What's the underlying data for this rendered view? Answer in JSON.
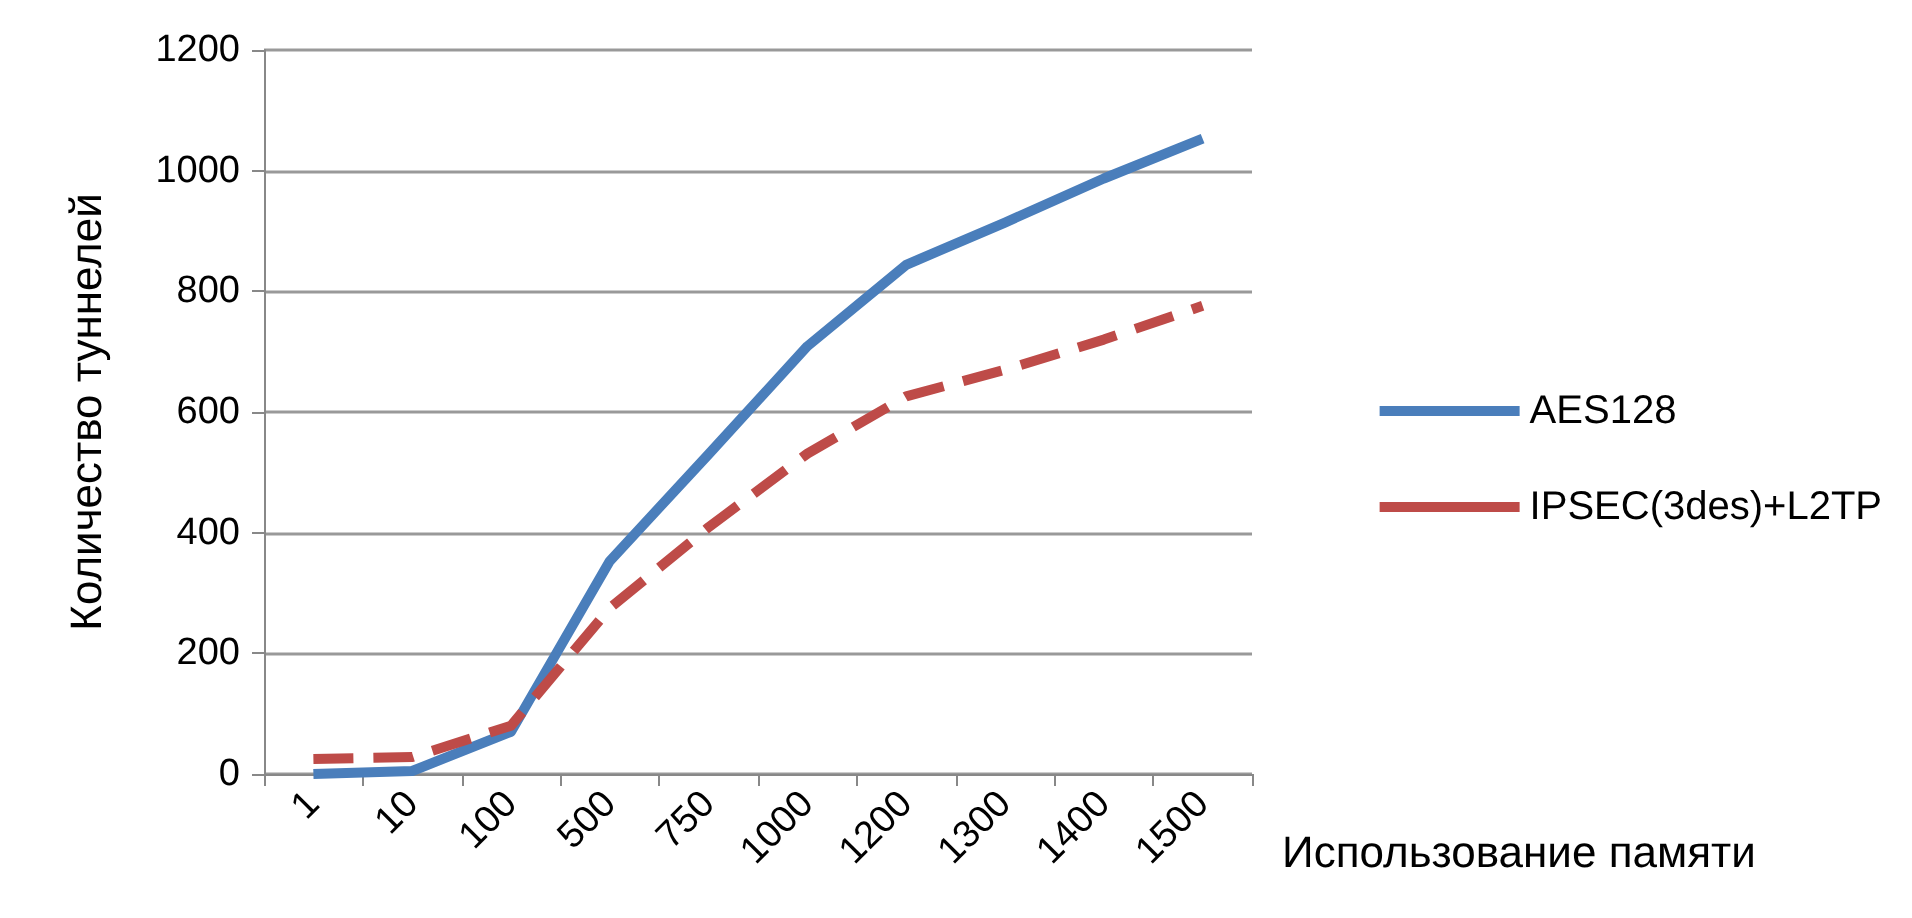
{
  "chart_data": {
    "type": "line",
    "xlabel": "Использование памяти",
    "ylabel": "Количество туннелей",
    "categories": [
      "1",
      "10",
      "100",
      "500",
      "750",
      "1000",
      "1200",
      "1300",
      "1400",
      "1500"
    ],
    "series": [
      {
        "name": "AES128",
        "color": "#4a7ebb",
        "line_style": "solid",
        "values": [
          0,
          5,
          70,
          353,
          530,
          709,
          844,
          914,
          987,
          1053
        ]
      },
      {
        "name": "IPSEC(3des)+L2TP",
        "color": "#be4b48",
        "line_style": "dashed",
        "values": [
          25,
          28,
          80,
          275,
          409,
          531,
          626,
          670,
          720,
          776
        ]
      }
    ],
    "ylim": [
      0,
      1200
    ],
    "yticks": [
      0,
      200,
      400,
      600,
      800,
      1000,
      1200
    ],
    "grid": "y",
    "legend": "right",
    "marker": "none"
  }
}
